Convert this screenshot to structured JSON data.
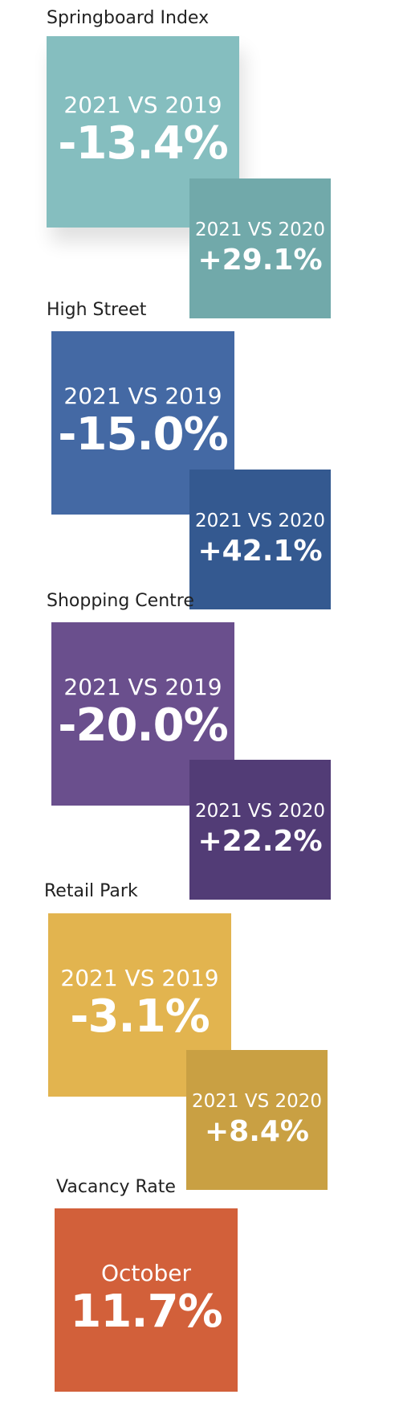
{
  "colors": {
    "springboard_main": "#85BEBF",
    "springboard_small": "#71A9AA",
    "high_street_main": "#4469A4",
    "high_street_small": "#345990",
    "shopping_centre_main": "#6A4F8D",
    "shopping_centre_small": "#523C76",
    "retail_park_main": "#E2B44F",
    "retail_park_small": "#C9A043",
    "vacancy_main": "#D2603A"
  },
  "sections": {
    "springboard": {
      "title": "Springboard Index",
      "main": {
        "label": "2021 VS 2019",
        "value": "-13.4%"
      },
      "small": {
        "label": "2021 VS 2020",
        "value": "+29.1%"
      }
    },
    "high_street": {
      "title": "High Street",
      "main": {
        "label": "2021 VS 2019",
        "value": "-15.0%"
      },
      "small": {
        "label": "2021 VS 2020",
        "value": "+42.1%"
      }
    },
    "shopping_centre": {
      "title": "Shopping Centre",
      "main": {
        "label": "2021 VS 2019",
        "value": "-20.0%"
      },
      "small": {
        "label": "2021 VS 2020",
        "value": "+22.2%"
      }
    },
    "retail_park": {
      "title": "Retail Park",
      "main": {
        "label": "2021 VS 2019",
        "value": "-3.1%"
      },
      "small": {
        "label": "2021 VS 2020",
        "value": "+8.4%"
      }
    },
    "vacancy": {
      "title": "Vacancy Rate",
      "main": {
        "label": "October",
        "value": "11.7%"
      }
    }
  }
}
